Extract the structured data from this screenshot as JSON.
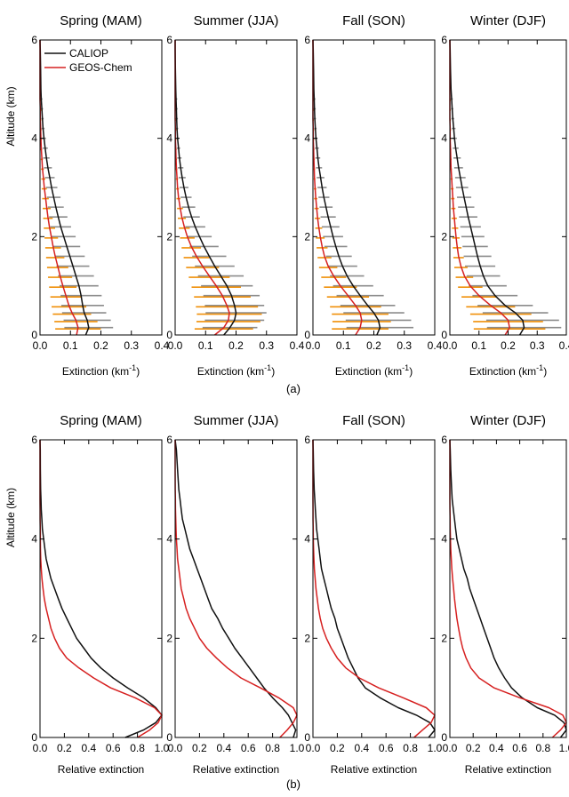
{
  "colors": {
    "caliop": "#111111",
    "geos_chem": "#d62020",
    "caliop_err": "#8c8c8c",
    "geos_err": "#f0900a"
  },
  "legend": {
    "items": [
      {
        "label": "CALIOP",
        "color": "#111111"
      },
      {
        "label": "GEOS-Chem",
        "color": "#d62020"
      }
    ],
    "placement": "top-left of first panel"
  },
  "rows": [
    {
      "label": "(a)",
      "xlabel": "Extinction (km⁻¹)",
      "xlim": [
        0,
        0.4
      ],
      "xticks": [
        "0.0",
        "0.1",
        "0.2",
        "0.3",
        "0.4"
      ],
      "ylabel": "Altitude (km)",
      "ylim": [
        0,
        6
      ],
      "yticks": [
        "0",
        "2",
        "4",
        "6"
      ]
    },
    {
      "label": "(b)",
      "xlabel": "Relative extinction",
      "xlim": [
        0,
        1
      ],
      "xticks": [
        "0.0",
        "0.2",
        "0.4",
        "0.6",
        "0.8",
        "1.0"
      ],
      "ylabel": "Altitude (km)",
      "ylim": [
        0,
        6
      ],
      "yticks": [
        "0",
        "2",
        "4",
        "6"
      ]
    }
  ],
  "chart_data": [
    {
      "type": "line",
      "title": "Spring (MAM)",
      "xlabel": "Extinction (km⁻¹)",
      "ylabel": "Altitude (km)",
      "xlim": [
        0,
        0.4
      ],
      "ylim": [
        0,
        6
      ],
      "altitude": [
        0.0,
        0.15,
        0.3,
        0.45,
        0.6,
        0.8,
        1.0,
        1.2,
        1.4,
        1.6,
        1.8,
        2.0,
        2.2,
        2.4,
        2.6,
        2.8,
        3.0,
        3.2,
        3.4,
        3.6,
        3.8,
        4.0,
        4.2,
        4.4,
        4.6,
        4.8,
        5.0,
        5.4,
        5.8,
        6.0
      ],
      "series": [
        {
          "name": "CALIOP",
          "values": [
            0.15,
            0.16,
            0.155,
            0.145,
            0.14,
            0.135,
            0.128,
            0.118,
            0.108,
            0.098,
            0.088,
            0.078,
            0.068,
            0.06,
            0.052,
            0.045,
            0.038,
            0.032,
            0.026,
            0.021,
            0.017,
            0.013,
            0.01,
            0.008,
            0.006,
            0.004,
            0.003,
            0.002,
            0.001,
            0.0
          ]
        },
        {
          "name": "GEOS-Chem",
          "values": [
            0.12,
            0.125,
            0.118,
            0.105,
            0.095,
            0.085,
            0.075,
            0.066,
            0.058,
            0.05,
            0.043,
            0.037,
            0.031,
            0.026,
            0.022,
            0.018,
            0.014,
            0.011,
            0.008,
            0.006,
            0.004,
            0.003,
            0.002,
            0.001,
            0.001,
            0.0,
            0.0,
            0.0,
            0.0,
            0.0
          ]
        }
      ]
    },
    {
      "type": "line",
      "title": "Summer (JJA)",
      "xlabel": "Extinction (km⁻¹)",
      "ylabel": "",
      "xlim": [
        0,
        0.4
      ],
      "ylim": [
        0,
        6
      ],
      "altitude": [
        0.0,
        0.15,
        0.3,
        0.45,
        0.6,
        0.8,
        1.0,
        1.2,
        1.4,
        1.6,
        1.8,
        2.0,
        2.2,
        2.4,
        2.6,
        2.8,
        3.0,
        3.2,
        3.4,
        3.6,
        3.8,
        4.0,
        4.2,
        4.4,
        4.6,
        4.8,
        5.0,
        5.4,
        5.8,
        6.0
      ],
      "series": [
        {
          "name": "CALIOP",
          "values": [
            0.16,
            0.18,
            0.195,
            0.2,
            0.195,
            0.185,
            0.17,
            0.15,
            0.13,
            0.112,
            0.095,
            0.08,
            0.066,
            0.054,
            0.044,
            0.036,
            0.029,
            0.023,
            0.018,
            0.014,
            0.011,
            0.008,
            0.006,
            0.005,
            0.004,
            0.003,
            0.002,
            0.001,
            0.0,
            0.0
          ]
        },
        {
          "name": "GEOS-Chem",
          "values": [
            0.13,
            0.16,
            0.175,
            0.178,
            0.17,
            0.155,
            0.135,
            0.112,
            0.09,
            0.07,
            0.053,
            0.04,
            0.03,
            0.022,
            0.016,
            0.011,
            0.008,
            0.006,
            0.004,
            0.003,
            0.002,
            0.001,
            0.001,
            0.0,
            0.0,
            0.0,
            0.0,
            0.0,
            0.0,
            0.0
          ]
        }
      ]
    },
    {
      "type": "line",
      "title": "Fall (SON)",
      "xlabel": "Extinction (km⁻¹)",
      "ylabel": "",
      "xlim": [
        0,
        0.4
      ],
      "ylim": [
        0,
        6
      ],
      "altitude": [
        0.0,
        0.15,
        0.3,
        0.45,
        0.6,
        0.8,
        1.0,
        1.2,
        1.4,
        1.6,
        1.8,
        2.0,
        2.2,
        2.4,
        2.6,
        2.8,
        3.0,
        3.2,
        3.4,
        3.6,
        3.8,
        4.0,
        4.2,
        4.4,
        4.6,
        4.8,
        5.0,
        5.4,
        5.8,
        6.0
      ],
      "series": [
        {
          "name": "CALIOP",
          "values": [
            0.21,
            0.22,
            0.215,
            0.2,
            0.18,
            0.155,
            0.132,
            0.112,
            0.097,
            0.085,
            0.075,
            0.066,
            0.058,
            0.05,
            0.043,
            0.036,
            0.03,
            0.025,
            0.02,
            0.016,
            0.013,
            0.01,
            0.008,
            0.006,
            0.005,
            0.004,
            0.003,
            0.002,
            0.001,
            0.0
          ]
        },
        {
          "name": "GEOS-Chem",
          "values": [
            0.14,
            0.155,
            0.16,
            0.155,
            0.14,
            0.115,
            0.09,
            0.068,
            0.05,
            0.038,
            0.03,
            0.024,
            0.019,
            0.015,
            0.012,
            0.009,
            0.007,
            0.005,
            0.004,
            0.003,
            0.002,
            0.001,
            0.001,
            0.0,
            0.0,
            0.0,
            0.0,
            0.0,
            0.0,
            0.0
          ]
        }
      ]
    },
    {
      "type": "line",
      "title": "Winter (DJF)",
      "xlabel": "Extinction (km⁻¹)",
      "ylabel": "",
      "xlim": [
        0,
        0.4
      ],
      "ylim": [
        0,
        6
      ],
      "altitude": [
        0.0,
        0.15,
        0.3,
        0.45,
        0.6,
        0.8,
        1.0,
        1.2,
        1.4,
        1.6,
        1.8,
        2.0,
        2.2,
        2.4,
        2.6,
        2.8,
        3.0,
        3.2,
        3.4,
        3.6,
        3.8,
        4.0,
        4.2,
        4.4,
        4.6,
        4.8,
        5.0,
        5.4,
        5.8,
        6.0
      ],
      "series": [
        {
          "name": "CALIOP",
          "values": [
            0.24,
            0.255,
            0.25,
            0.225,
            0.19,
            0.155,
            0.13,
            0.115,
            0.104,
            0.095,
            0.087,
            0.079,
            0.071,
            0.063,
            0.056,
            0.049,
            0.042,
            0.036,
            0.03,
            0.025,
            0.02,
            0.016,
            0.013,
            0.01,
            0.008,
            0.006,
            0.004,
            0.002,
            0.001,
            0.0
          ]
        },
        {
          "name": "GEOS-Chem",
          "values": [
            0.19,
            0.205,
            0.2,
            0.175,
            0.14,
            0.1,
            0.07,
            0.05,
            0.038,
            0.03,
            0.025,
            0.021,
            0.018,
            0.015,
            0.012,
            0.01,
            0.008,
            0.006,
            0.004,
            0.003,
            0.002,
            0.001,
            0.001,
            0.0,
            0.0,
            0.0,
            0.0,
            0.0,
            0.0,
            0.0
          ]
        }
      ]
    },
    {
      "type": "line",
      "title": "Spring (MAM)",
      "xlabel": "Relative extinction",
      "ylabel": "Altitude (km)",
      "xlim": [
        0,
        1
      ],
      "ylim": [
        0,
        6
      ],
      "altitude": [
        0.0,
        0.15,
        0.3,
        0.45,
        0.6,
        0.8,
        1.0,
        1.2,
        1.4,
        1.6,
        1.8,
        2.0,
        2.2,
        2.4,
        2.6,
        2.8,
        3.0,
        3.2,
        3.4,
        3.6,
        3.8,
        4.0,
        4.2,
        4.4,
        4.6,
        4.8,
        5.0,
        5.4,
        5.8,
        6.0
      ],
      "series": [
        {
          "name": "CALIOP",
          "values": [
            0.7,
            0.85,
            0.95,
            1.0,
            0.95,
            0.85,
            0.72,
            0.6,
            0.5,
            0.42,
            0.36,
            0.3,
            0.26,
            0.22,
            0.18,
            0.15,
            0.12,
            0.09,
            0.07,
            0.05,
            0.04,
            0.03,
            0.02,
            0.015,
            0.01,
            0.008,
            0.005,
            0.003,
            0.002,
            0.0
          ]
        },
        {
          "name": "GEOS-Chem",
          "values": [
            0.8,
            0.9,
            0.97,
            1.0,
            0.94,
            0.78,
            0.58,
            0.44,
            0.32,
            0.22,
            0.16,
            0.12,
            0.09,
            0.07,
            0.05,
            0.035,
            0.025,
            0.016,
            0.01,
            0.006,
            0.004,
            0.003,
            0.002,
            0.001,
            0.001,
            0.0,
            0.0,
            0.0,
            0.0,
            0.0
          ]
        }
      ]
    },
    {
      "type": "line",
      "title": "Summer (JJA)",
      "xlabel": "Relative extinction",
      "ylabel": "",
      "xlim": [
        0,
        1
      ],
      "ylim": [
        0,
        6
      ],
      "altitude": [
        0.0,
        0.15,
        0.3,
        0.45,
        0.6,
        0.8,
        1.0,
        1.2,
        1.4,
        1.6,
        1.8,
        2.0,
        2.2,
        2.4,
        2.6,
        2.8,
        3.0,
        3.2,
        3.4,
        3.6,
        3.8,
        4.0,
        4.2,
        4.4,
        4.6,
        4.8,
        5.0,
        5.4,
        5.8,
        6.0
      ],
      "series": [
        {
          "name": "CALIOP",
          "values": [
            0.97,
            0.99,
            0.96,
            0.93,
            0.88,
            0.8,
            0.73,
            0.67,
            0.61,
            0.55,
            0.49,
            0.44,
            0.39,
            0.35,
            0.3,
            0.27,
            0.24,
            0.21,
            0.18,
            0.15,
            0.12,
            0.1,
            0.08,
            0.06,
            0.05,
            0.04,
            0.03,
            0.02,
            0.01,
            0.0
          ]
        },
        {
          "name": "GEOS-Chem",
          "values": [
            0.86,
            0.92,
            0.97,
            1.0,
            0.97,
            0.85,
            0.7,
            0.54,
            0.43,
            0.34,
            0.26,
            0.2,
            0.16,
            0.12,
            0.09,
            0.07,
            0.05,
            0.04,
            0.03,
            0.02,
            0.015,
            0.01,
            0.007,
            0.005,
            0.003,
            0.002,
            0.001,
            0.0,
            0.0,
            0.0
          ]
        }
      ]
    },
    {
      "type": "line",
      "title": "Fall (SON)",
      "xlabel": "Relative extinction",
      "ylabel": "",
      "xlim": [
        0,
        1
      ],
      "ylim": [
        0,
        6
      ],
      "altitude": [
        0.0,
        0.15,
        0.3,
        0.45,
        0.6,
        0.8,
        1.0,
        1.2,
        1.4,
        1.6,
        1.8,
        2.0,
        2.2,
        2.4,
        2.6,
        2.8,
        3.0,
        3.2,
        3.4,
        3.6,
        3.8,
        4.0,
        4.2,
        4.4,
        4.6,
        4.8,
        5.0,
        5.4,
        5.8,
        6.0
      ],
      "series": [
        {
          "name": "CALIOP",
          "values": [
            0.95,
            1.0,
            0.96,
            0.85,
            0.7,
            0.55,
            0.43,
            0.37,
            0.33,
            0.29,
            0.26,
            0.23,
            0.2,
            0.18,
            0.15,
            0.13,
            0.11,
            0.09,
            0.07,
            0.06,
            0.05,
            0.04,
            0.03,
            0.025,
            0.02,
            0.015,
            0.01,
            0.005,
            0.002,
            0.0
          ]
        },
        {
          "name": "GEOS-Chem",
          "values": [
            0.83,
            0.9,
            0.97,
            1.0,
            0.93,
            0.74,
            0.54,
            0.38,
            0.27,
            0.2,
            0.15,
            0.11,
            0.08,
            0.06,
            0.045,
            0.035,
            0.025,
            0.018,
            0.012,
            0.008,
            0.005,
            0.003,
            0.002,
            0.001,
            0.001,
            0.0,
            0.0,
            0.0,
            0.0,
            0.0
          ]
        }
      ]
    },
    {
      "type": "line",
      "title": "Winter (DJF)",
      "xlabel": "Relative extinction",
      "ylabel": "",
      "xlim": [
        0,
        1
      ],
      "ylim": [
        0,
        6
      ],
      "altitude": [
        0.0,
        0.15,
        0.3,
        0.45,
        0.6,
        0.8,
        1.0,
        1.2,
        1.4,
        1.6,
        1.8,
        2.0,
        2.2,
        2.4,
        2.6,
        2.8,
        3.0,
        3.2,
        3.4,
        3.6,
        3.8,
        4.0,
        4.2,
        4.4,
        4.6,
        4.8,
        5.0,
        5.4,
        5.8,
        6.0
      ],
      "series": [
        {
          "name": "CALIOP",
          "values": [
            0.95,
            1.0,
            0.98,
            0.9,
            0.75,
            0.62,
            0.53,
            0.47,
            0.42,
            0.38,
            0.35,
            0.32,
            0.29,
            0.26,
            0.23,
            0.2,
            0.17,
            0.15,
            0.12,
            0.1,
            0.08,
            0.06,
            0.05,
            0.04,
            0.03,
            0.02,
            0.015,
            0.008,
            0.003,
            0.0
          ]
        },
        {
          "name": "GEOS-Chem",
          "values": [
            0.88,
            0.95,
            1.0,
            0.97,
            0.85,
            0.6,
            0.38,
            0.25,
            0.18,
            0.14,
            0.11,
            0.09,
            0.075,
            0.06,
            0.05,
            0.04,
            0.032,
            0.024,
            0.017,
            0.012,
            0.008,
            0.005,
            0.003,
            0.002,
            0.001,
            0.0,
            0.0,
            0.0,
            0.0,
            0.0
          ]
        }
      ]
    }
  ]
}
